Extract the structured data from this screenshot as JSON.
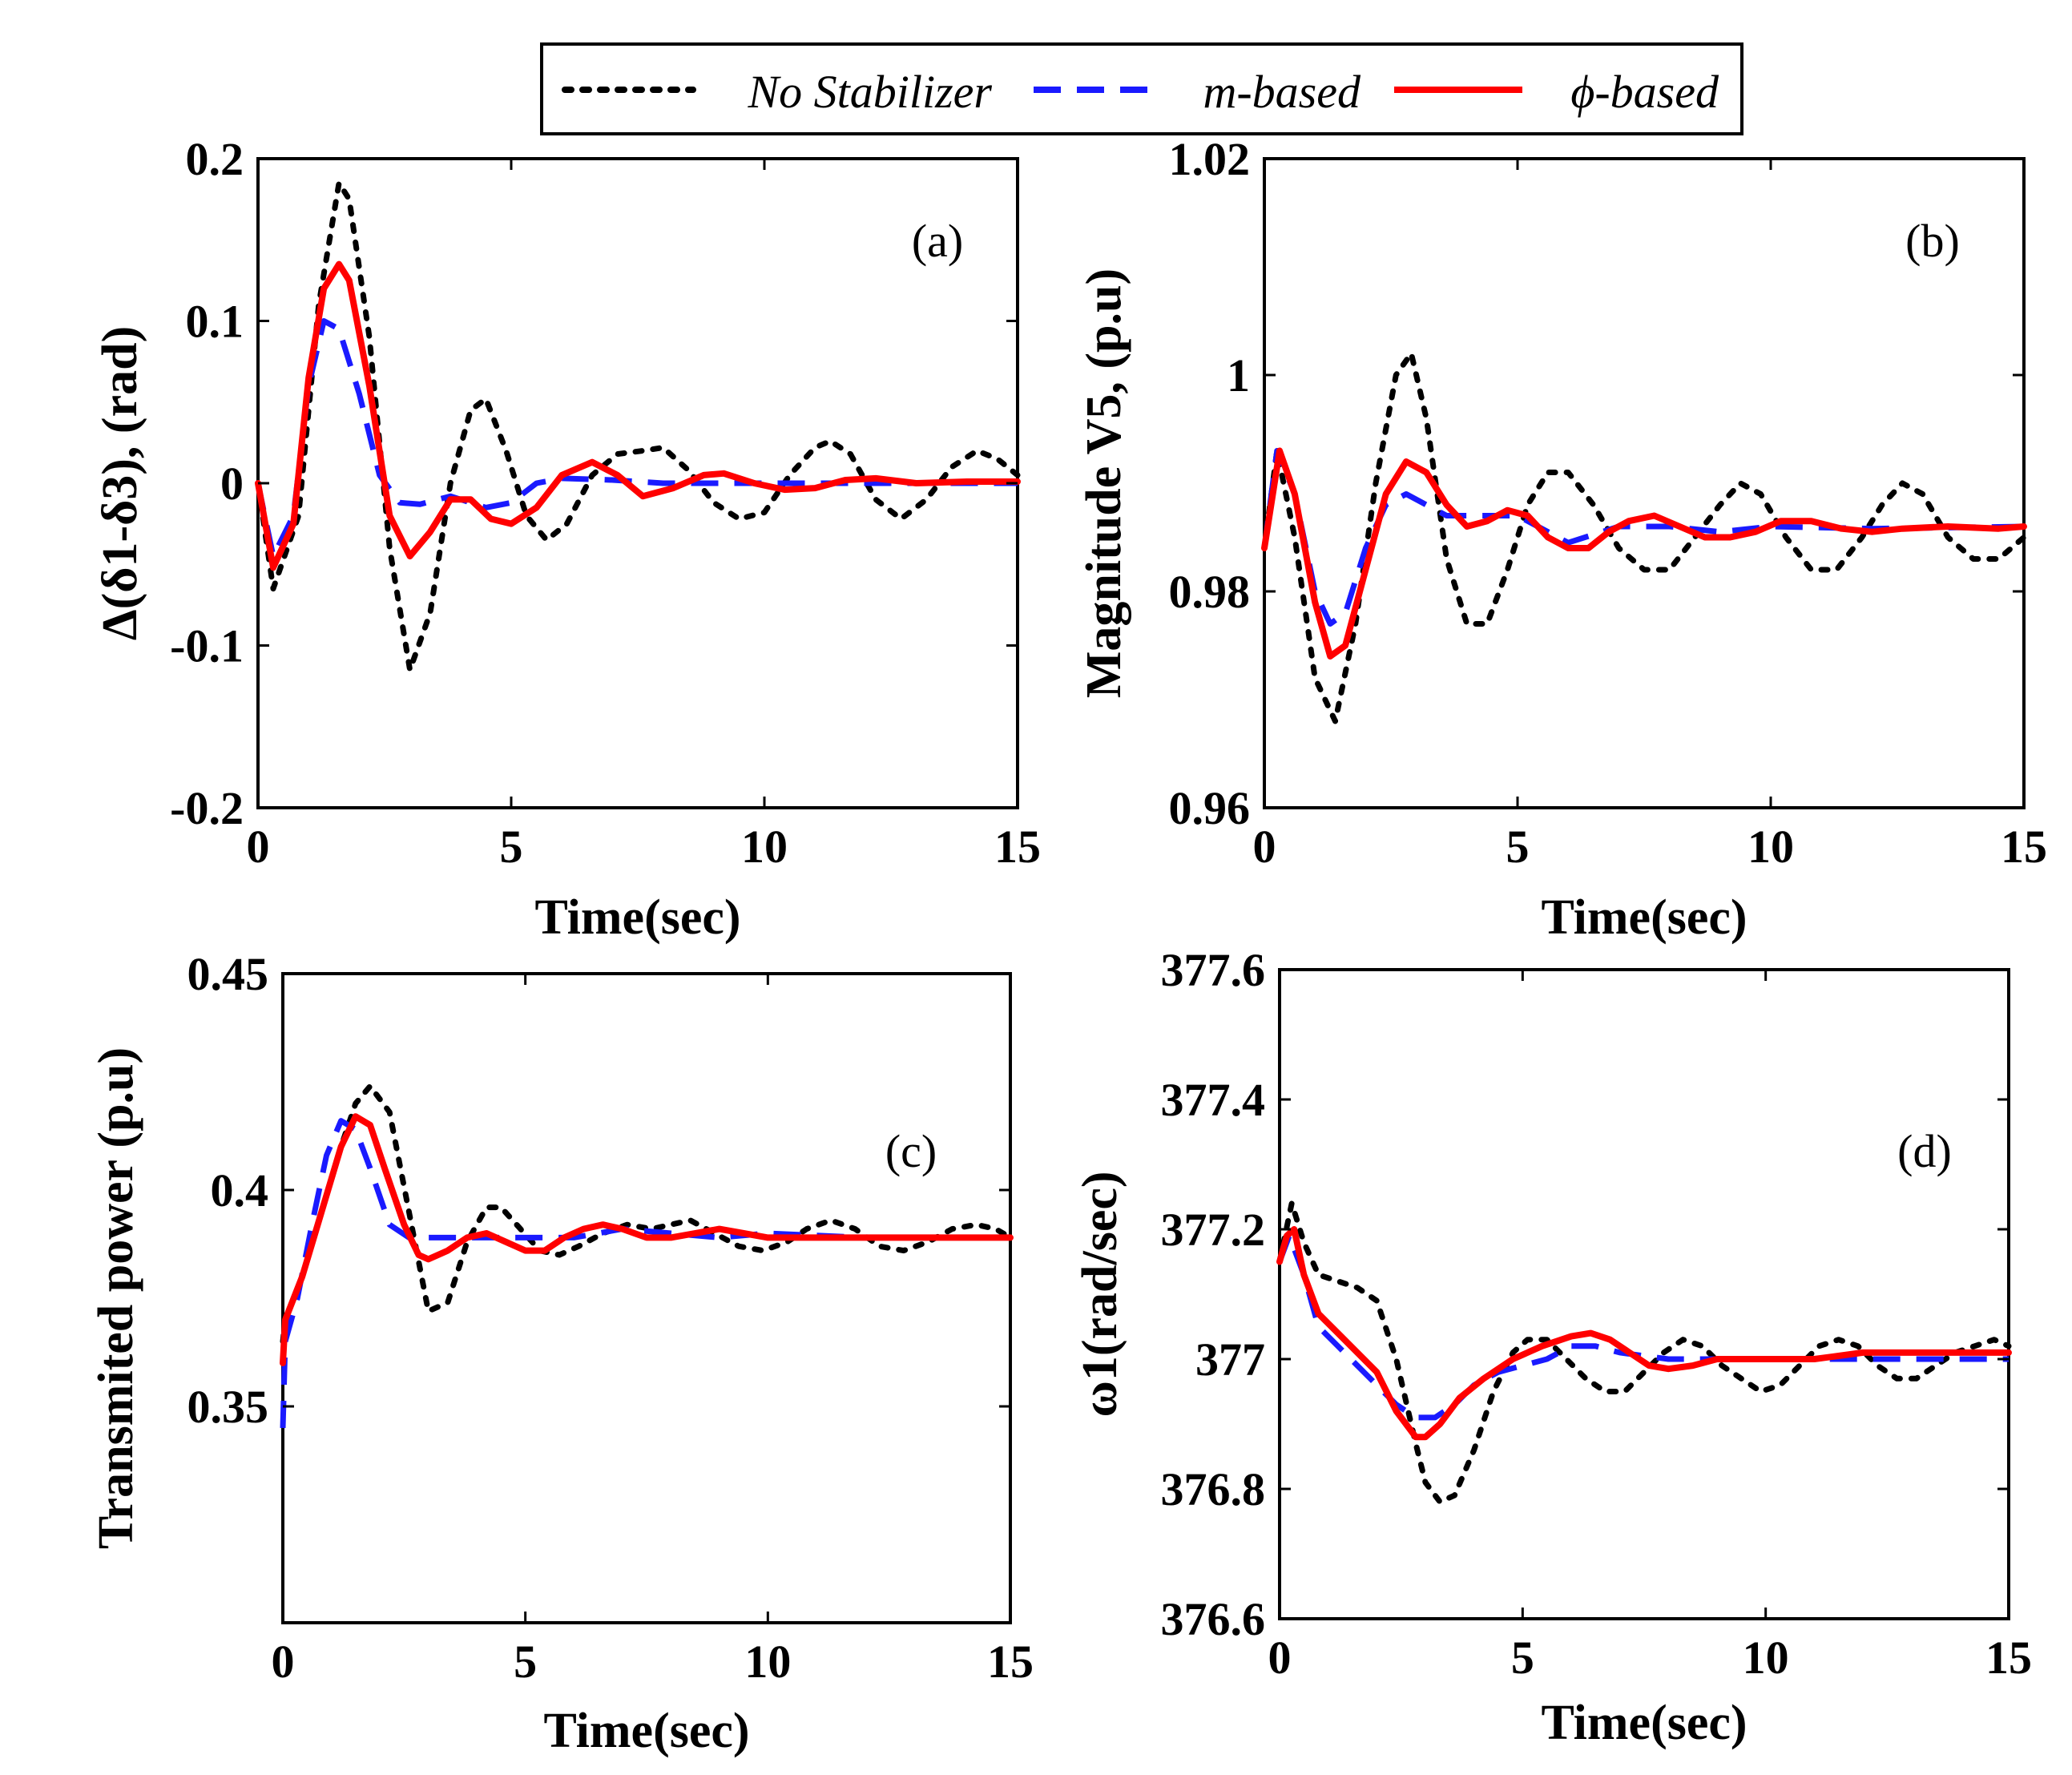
{
  "legend": [
    {
      "label": "No Stabilizer",
      "color": "#000000",
      "style": "dotted"
    },
    {
      "label": "m-based",
      "color": "#1a1aff",
      "style": "dashed"
    },
    {
      "label": "ϕ-based",
      "color": "#ff0000",
      "style": "solid"
    }
  ],
  "chart_data": [
    {
      "type": "line",
      "panel": "(a)",
      "xlabel": "Time(sec)",
      "ylabel": "Δ(δ1-δ3), (rad)",
      "xlim": [
        0,
        15
      ],
      "ylim": [
        -0.2,
        0.2
      ],
      "xticks": [
        0,
        5,
        10,
        15
      ],
      "xtick_labels": [
        "0",
        "5",
        "10",
        "15"
      ],
      "yticks": [
        -0.2,
        -0.1,
        0,
        0.1,
        0.2
      ],
      "ytick_labels": [
        "-0.2",
        "-0.1",
        "0",
        "0.1",
        "0.2"
      ],
      "series": [
        {
          "name": "No Stabilizer",
          "x": [
            0,
            0.3,
            0.8,
            1.2,
            1.6,
            1.8,
            2.2,
            2.6,
            3.0,
            3.4,
            3.8,
            4.2,
            4.5,
            4.9,
            5.3,
            5.7,
            6.1,
            6.6,
            7.1,
            7.6,
            8.0,
            8.5,
            9.0,
            9.5,
            10.0,
            10.5,
            11.0,
            11.3,
            11.7,
            12.2,
            12.7,
            13.2,
            13.7,
            14.2,
            14.6,
            15.0
          ],
          "y": [
            0,
            -0.065,
            -0.02,
            0.11,
            0.185,
            0.175,
            0.09,
            -0.04,
            -0.115,
            -0.08,
            0.0,
            0.045,
            0.052,
            0.02,
            -0.02,
            -0.035,
            -0.025,
            0.005,
            0.018,
            0.02,
            0.022,
            0.008,
            -0.012,
            -0.022,
            -0.018,
            0.005,
            0.022,
            0.026,
            0.018,
            -0.01,
            -0.022,
            -0.01,
            0.01,
            0.02,
            0.015,
            0.005
          ]
        },
        {
          "name": "m-based",
          "x": [
            0,
            0.3,
            0.7,
            1.0,
            1.3,
            1.6,
            2.0,
            2.4,
            2.8,
            3.2,
            3.8,
            4.5,
            5.0,
            5.5,
            6.0,
            7.0,
            8.0,
            9.0,
            10.0,
            12.0,
            15.0
          ],
          "y": [
            0,
            -0.045,
            -0.02,
            0.06,
            0.1,
            0.095,
            0.055,
            0.005,
            -0.012,
            -0.013,
            -0.008,
            -0.015,
            -0.012,
            0.0,
            0.003,
            0.002,
            0.0,
            0.0,
            0.0,
            0.0,
            0.0
          ]
        },
        {
          "name": "ϕ-based",
          "x": [
            0,
            0.3,
            0.7,
            1.0,
            1.3,
            1.6,
            1.8,
            2.2,
            2.6,
            3.0,
            3.4,
            3.8,
            4.2,
            4.6,
            5.0,
            5.5,
            6.0,
            6.6,
            7.1,
            7.6,
            8.2,
            8.8,
            9.2,
            9.8,
            10.4,
            11.0,
            11.6,
            12.2,
            13.0,
            14.0,
            15.0
          ],
          "y": [
            0,
            -0.052,
            -0.025,
            0.065,
            0.12,
            0.135,
            0.125,
            0.06,
            -0.02,
            -0.045,
            -0.03,
            -0.01,
            -0.01,
            -0.022,
            -0.025,
            -0.015,
            0.005,
            0.013,
            0.005,
            -0.008,
            -0.003,
            0.005,
            0.006,
            0.0,
            -0.004,
            -0.003,
            0.002,
            0.003,
            0.0,
            0.001,
            0.001
          ]
        }
      ]
    },
    {
      "type": "line",
      "panel": "(b)",
      "xlabel": "Time(sec)",
      "ylabel": "Magnitude V5, (p.u)",
      "xlim": [
        0,
        15
      ],
      "ylim": [
        0.96,
        1.02
      ],
      "xticks": [
        0,
        5,
        10,
        15
      ],
      "xtick_labels": [
        "0",
        "5",
        "10",
        "15"
      ],
      "yticks": [
        0.96,
        0.98,
        1.0,
        1.02
      ],
      "ytick_labels": [
        "0.96",
        "0.98",
        "1",
        "1.02"
      ],
      "series": [
        {
          "name": "No Stabilizer",
          "x": [
            0,
            0.25,
            0.6,
            1.0,
            1.4,
            1.8,
            2.2,
            2.6,
            2.9,
            3.2,
            3.6,
            4.0,
            4.4,
            4.8,
            5.2,
            5.6,
            6.0,
            6.5,
            7.0,
            7.5,
            8.0,
            8.5,
            9.0,
            9.4,
            9.8,
            10.3,
            10.8,
            11.3,
            11.8,
            12.2,
            12.6,
            13.0,
            13.5,
            14.0,
            14.5,
            15.0
          ],
          "y": [
            0.984,
            0.993,
            0.985,
            0.972,
            0.968,
            0.977,
            0.99,
            1.0,
            1.002,
            0.996,
            0.983,
            0.977,
            0.977,
            0.982,
            0.988,
            0.991,
            0.991,
            0.988,
            0.984,
            0.982,
            0.982,
            0.985,
            0.988,
            0.99,
            0.989,
            0.985,
            0.982,
            0.982,
            0.985,
            0.988,
            0.99,
            0.989,
            0.985,
            0.983,
            0.983,
            0.985
          ]
        },
        {
          "name": "m-based",
          "x": [
            0,
            0.25,
            0.6,
            1.0,
            1.3,
            1.6,
            2.0,
            2.4,
            2.8,
            3.2,
            3.6,
            4.0,
            5.0,
            6.0,
            7.0,
            8.0,
            9.0,
            10.0,
            12.0,
            15.0
          ],
          "y": [
            0.984,
            0.993,
            0.989,
            0.98,
            0.977,
            0.978,
            0.984,
            0.988,
            0.989,
            0.988,
            0.987,
            0.987,
            0.987,
            0.9845,
            0.986,
            0.986,
            0.9855,
            0.986,
            0.9858,
            0.986
          ]
        },
        {
          "name": "ϕ-based",
          "x": [
            0,
            0.3,
            0.6,
            1.0,
            1.3,
            1.6,
            2.0,
            2.4,
            2.8,
            3.2,
            3.6,
            4.0,
            4.4,
            4.8,
            5.2,
            5.6,
            6.0,
            6.4,
            6.8,
            7.2,
            7.7,
            8.2,
            8.7,
            9.2,
            9.7,
            10.2,
            10.8,
            11.4,
            12.0,
            12.6,
            13.5,
            14.5,
            15.0
          ],
          "y": [
            0.984,
            0.993,
            0.989,
            0.979,
            0.974,
            0.975,
            0.982,
            0.989,
            0.992,
            0.991,
            0.988,
            0.986,
            0.9865,
            0.9875,
            0.987,
            0.985,
            0.984,
            0.984,
            0.9855,
            0.9865,
            0.987,
            0.986,
            0.985,
            0.985,
            0.9855,
            0.9865,
            0.9865,
            0.9858,
            0.9855,
            0.9858,
            0.986,
            0.9858,
            0.986
          ]
        }
      ]
    },
    {
      "type": "line",
      "panel": "(c)",
      "xlabel": "Time(sec)",
      "ylabel": "Transmited power (p.u)",
      "xlim": [
        0,
        15
      ],
      "ylim": [
        0.3,
        0.45
      ],
      "xticks": [
        0,
        5,
        10,
        15
      ],
      "xtick_labels": [
        "0",
        "5",
        "10",
        "15"
      ],
      "yticks": [
        0.35,
        0.4,
        0.45
      ],
      "ytick_labels": [
        "0.35",
        "0.4",
        "0.45"
      ],
      "series": [
        {
          "name": "No Stabilizer",
          "x": [
            0,
            0.05,
            0.4,
            0.8,
            1.2,
            1.5,
            1.8,
            2.2,
            2.6,
            3.0,
            3.4,
            3.8,
            4.2,
            4.5,
            4.9,
            5.3,
            5.7,
            6.1,
            6.6,
            7.1,
            7.6,
            8.0,
            8.4,
            8.9,
            9.4,
            9.9,
            10.4,
            10.8,
            11.3,
            11.8,
            12.3,
            12.8,
            13.3,
            13.8,
            14.3,
            14.7,
            15.0
          ],
          "y": [
            0.365,
            0.37,
            0.38,
            0.395,
            0.41,
            0.42,
            0.424,
            0.418,
            0.395,
            0.372,
            0.374,
            0.388,
            0.396,
            0.396,
            0.391,
            0.386,
            0.385,
            0.387,
            0.39,
            0.392,
            0.391,
            0.392,
            0.393,
            0.39,
            0.387,
            0.386,
            0.388,
            0.391,
            0.393,
            0.391,
            0.387,
            0.386,
            0.388,
            0.391,
            0.392,
            0.391,
            0.389
          ]
        },
        {
          "name": "m-based",
          "x": [
            0,
            0.05,
            0.3,
            0.6,
            0.9,
            1.2,
            1.5,
            1.8,
            2.2,
            2.6,
            3.0,
            4.0,
            5.0,
            6.0,
            7.0,
            8.0,
            9.0,
            10.0,
            12.0,
            15.0
          ],
          "y": [
            0.345,
            0.365,
            0.375,
            0.392,
            0.408,
            0.416,
            0.414,
            0.405,
            0.392,
            0.389,
            0.389,
            0.389,
            0.389,
            0.389,
            0.391,
            0.39,
            0.389,
            0.39,
            0.389,
            0.389
          ]
        },
        {
          "name": "ϕ-based",
          "x": [
            0,
            0.05,
            0.4,
            0.8,
            1.2,
            1.5,
            1.8,
            2.1,
            2.5,
            2.8,
            3.0,
            3.4,
            3.8,
            4.2,
            4.6,
            5.0,
            5.4,
            5.8,
            6.2,
            6.6,
            7.0,
            7.5,
            8.0,
            8.5,
            9.0,
            9.5,
            10.0,
            10.5,
            11.0,
            12.0,
            13.0,
            14.0,
            15.0
          ],
          "y": [
            0.36,
            0.37,
            0.38,
            0.395,
            0.41,
            0.417,
            0.415,
            0.405,
            0.392,
            0.385,
            0.384,
            0.386,
            0.389,
            0.39,
            0.388,
            0.386,
            0.386,
            0.389,
            0.391,
            0.392,
            0.391,
            0.389,
            0.389,
            0.39,
            0.391,
            0.39,
            0.389,
            0.389,
            0.389,
            0.389,
            0.389,
            0.389,
            0.389
          ]
        }
      ]
    },
    {
      "type": "line",
      "panel": "(d)",
      "xlabel": "Time(sec)",
      "ylabel": "ω1(rad/sec)",
      "xlim": [
        0,
        15
      ],
      "ylim": [
        376.6,
        377.6
      ],
      "xticks": [
        0,
        5,
        10,
        15
      ],
      "xtick_labels": [
        "0",
        "5",
        "10",
        "15"
      ],
      "yticks": [
        376.6,
        376.8,
        377.0,
        377.2,
        377.4,
        377.6
      ],
      "ytick_labels": [
        "376.6",
        "376.8",
        "377",
        "377.2",
        "377.4",
        "377.6"
      ],
      "series": [
        {
          "name": "No Stabilizer",
          "x": [
            0,
            0.25,
            0.5,
            0.8,
            1.2,
            1.6,
            2.0,
            2.4,
            2.8,
            3.0,
            3.3,
            3.6,
            4.0,
            4.4,
            4.8,
            5.1,
            5.5,
            5.9,
            6.3,
            6.7,
            7.1,
            7.5,
            7.9,
            8.3,
            8.7,
            9.1,
            9.5,
            9.9,
            10.3,
            10.7,
            11.1,
            11.5,
            11.9,
            12.3,
            12.7,
            13.1,
            13.5,
            13.9,
            14.3,
            14.7,
            15.0
          ],
          "y": [
            377.15,
            377.24,
            377.18,
            377.13,
            377.12,
            377.11,
            377.09,
            377.0,
            376.87,
            376.81,
            376.78,
            376.79,
            376.86,
            376.95,
            377.01,
            377.03,
            377.03,
            377.0,
            376.97,
            376.95,
            376.95,
            376.98,
            377.01,
            377.03,
            377.02,
            376.99,
            376.97,
            376.95,
            376.96,
            376.99,
            377.02,
            377.03,
            377.02,
            376.99,
            376.97,
            376.97,
            376.99,
            377.01,
            377.02,
            377.03,
            377.02
          ]
        },
        {
          "name": "m-based",
          "x": [
            0,
            0.2,
            0.5,
            0.8,
            1.2,
            1.6,
            2.0,
            2.4,
            2.8,
            3.2,
            3.6,
            4.0,
            4.5,
            5.0,
            5.5,
            6.0,
            6.5,
            7.0,
            8.0,
            9.0,
            10.0,
            12.0,
            15.0
          ],
          "y": [
            377.15,
            377.19,
            377.13,
            377.05,
            377.02,
            376.99,
            376.96,
            376.93,
            376.91,
            376.91,
            376.93,
            376.96,
            376.98,
            376.99,
            377.0,
            377.02,
            377.02,
            377.01,
            377.0,
            377.0,
            377.0,
            377.0,
            377.0
          ]
        },
        {
          "name": "ϕ-based",
          "x": [
            0,
            0.15,
            0.3,
            0.5,
            0.8,
            1.2,
            1.6,
            2.0,
            2.4,
            2.8,
            3.0,
            3.3,
            3.7,
            4.2,
            4.8,
            5.4,
            6.0,
            6.4,
            6.8,
            7.2,
            7.6,
            8.0,
            8.5,
            9.0,
            9.5,
            10.0,
            10.5,
            11.0,
            11.5,
            12.0,
            12.5,
            13.0,
            14.0,
            15.0
          ],
          "y": [
            377.15,
            377.19,
            377.2,
            377.13,
            377.07,
            377.04,
            377.01,
            376.98,
            376.92,
            376.88,
            376.88,
            376.9,
            376.94,
            376.97,
            377.0,
            377.02,
            377.035,
            377.04,
            377.03,
            377.01,
            376.99,
            376.985,
            376.99,
            377.0,
            377.0,
            377.0,
            377.0,
            377.0,
            377.005,
            377.01,
            377.01,
            377.01,
            377.01,
            377.01
          ]
        }
      ]
    }
  ]
}
